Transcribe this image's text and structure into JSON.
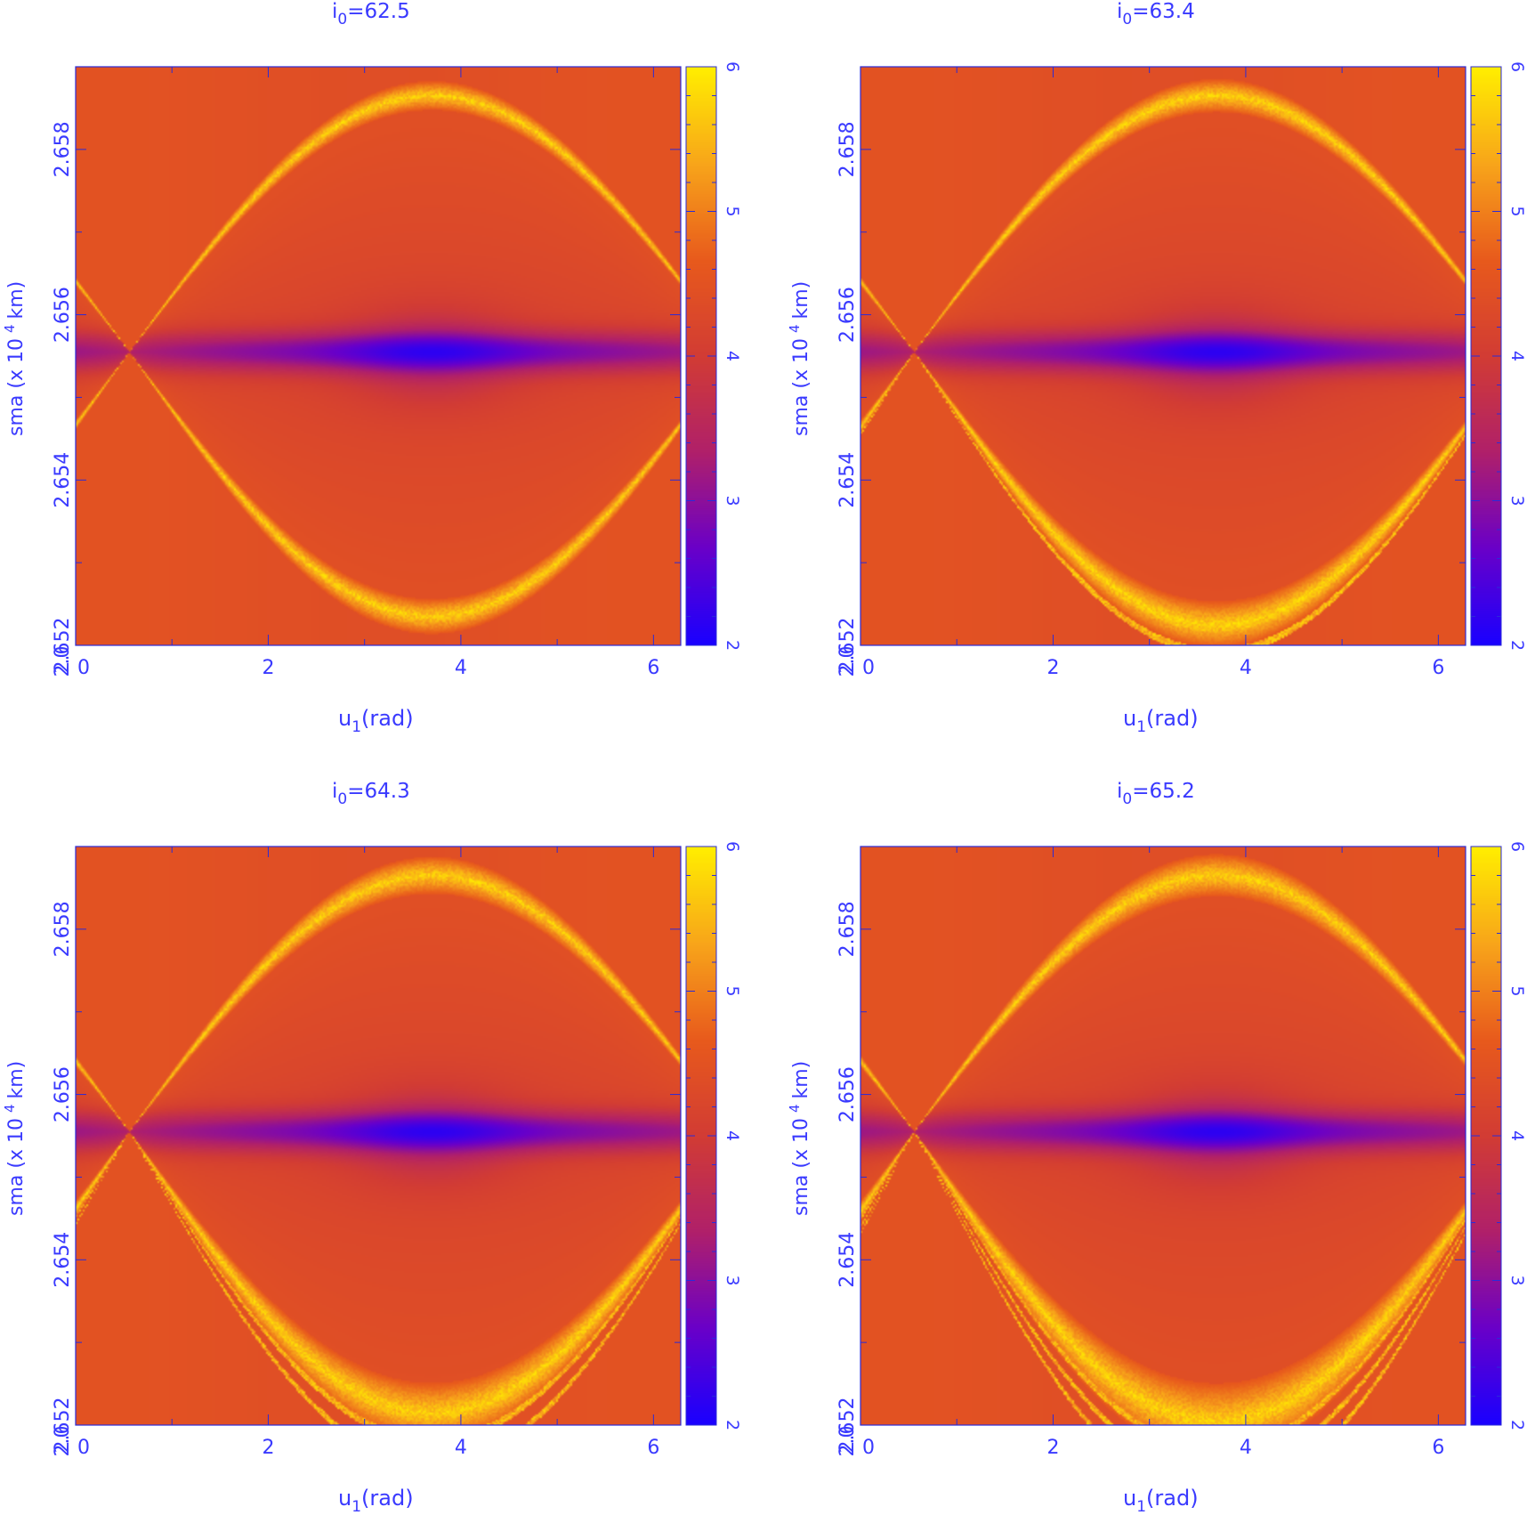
{
  "figure": {
    "colors": {
      "axis": "#2b2bd8",
      "text": "#3a3aff",
      "colormap": [
        "#1a00ff",
        "#6a00c8",
        "#b0206a",
        "#d23c34",
        "#e85a1c",
        "#f8a51a",
        "#ffee00"
      ]
    }
  },
  "chart_data": [
    {
      "type": "heatmap",
      "title": "i0=62.5",
      "title_main": "i",
      "title_sub": "0",
      "title_rest": "=62.5",
      "xlabel": "u1(rad)",
      "xlabel_main": "u",
      "xlabel_sub": "1",
      "xlabel_rest": "(rad)",
      "ylabel": "sma (x 10 4 km)",
      "ylabel_main": "sma (x 10",
      "ylabel_sup": "4",
      "ylabel_rest": "km)",
      "xlim": [
        0,
        6.283
      ],
      "ylim": [
        2.652,
        2.659
      ],
      "xticks": [
        "0",
        "2",
        "4",
        "6"
      ],
      "yticks": [
        "2.652",
        "2.654",
        "2.656",
        "2.658"
      ],
      "corner_label": "2.0",
      "colorbar": {
        "ticks": [
          "2",
          "3",
          "4",
          "5",
          "6"
        ],
        "range": [
          2,
          6
        ]
      },
      "structure": {
        "separatrix_center_u": 3.7,
        "separatrix_top_sma": 2.65865,
        "separatrix_bottom_sma": 2.65235,
        "saddle_u": 0.5,
        "saddle_sma": 2.65555,
        "chaotic_band": 0.2
      }
    },
    {
      "type": "heatmap",
      "title": "i0=63.4",
      "title_main": "i",
      "title_sub": "0",
      "title_rest": "=63.4",
      "xlabel": "u1(rad)",
      "xlabel_main": "u",
      "xlabel_sub": "1",
      "xlabel_rest": "(rad)",
      "ylabel": "sma (x 10 4 km)",
      "ylabel_main": "sma (x 10",
      "ylabel_sup": "4",
      "ylabel_rest": "km)",
      "xlim": [
        0,
        6.283
      ],
      "ylim": [
        2.652,
        2.659
      ],
      "xticks": [
        "0",
        "2",
        "4",
        "6"
      ],
      "yticks": [
        "2.652",
        "2.654",
        "2.656",
        "2.658"
      ],
      "corner_label": "2.0",
      "colorbar": {
        "ticks": [
          "2",
          "3",
          "4",
          "5",
          "6"
        ],
        "range": [
          2,
          6
        ]
      },
      "structure": {
        "separatrix_center_u": 3.7,
        "separatrix_top_sma": 2.65865,
        "separatrix_bottom_sma": 2.65225,
        "saddle_u": 0.5,
        "saddle_sma": 2.65555,
        "chaotic_band": 0.45
      }
    },
    {
      "type": "heatmap",
      "title": "i0=64.3",
      "title_main": "i",
      "title_sub": "0",
      "title_rest": "=64.3",
      "xlabel": "u1(rad)",
      "xlabel_main": "u",
      "xlabel_sub": "1",
      "xlabel_rest": "(rad)",
      "ylabel": "sma (x 10 4 km)",
      "ylabel_main": "sma (x 10",
      "ylabel_sup": "4",
      "ylabel_rest": "km)",
      "xlim": [
        0,
        6.283
      ],
      "ylim": [
        2.652,
        2.659
      ],
      "xticks": [
        "0",
        "2",
        "4",
        "6"
      ],
      "yticks": [
        "2.652",
        "2.654",
        "2.656",
        "2.658"
      ],
      "corner_label": "2.0",
      "colorbar": {
        "ticks": [
          "2",
          "3",
          "4",
          "5",
          "6"
        ],
        "range": [
          2,
          6
        ]
      },
      "structure": {
        "separatrix_center_u": 3.7,
        "separatrix_top_sma": 2.65865,
        "separatrix_bottom_sma": 2.65215,
        "saddle_u": 0.5,
        "saddle_sma": 2.65555,
        "chaotic_band": 0.7
      }
    },
    {
      "type": "heatmap",
      "title": "i0=65.2",
      "title_main": "i",
      "title_sub": "0",
      "title_rest": "=65.2",
      "xlabel": "u1(rad)",
      "xlabel_main": "u",
      "xlabel_sub": "1",
      "xlabel_rest": "(rad)",
      "ylabel": "sma (x 10 4 km)",
      "ylabel_main": "sma (x 10",
      "ylabel_sup": "4",
      "ylabel_rest": "km)",
      "xlim": [
        0,
        6.283
      ],
      "ylim": [
        2.652,
        2.659
      ],
      "xticks": [
        "0",
        "2",
        "4",
        "6"
      ],
      "yticks": [
        "2.652",
        "2.654",
        "2.656",
        "2.658"
      ],
      "corner_label": "2.0",
      "colorbar": {
        "ticks": [
          "2",
          "3",
          "4",
          "5",
          "6"
        ],
        "range": [
          2,
          6
        ]
      },
      "structure": {
        "separatrix_center_u": 3.7,
        "separatrix_top_sma": 2.65865,
        "separatrix_bottom_sma": 2.65205,
        "saddle_u": 0.5,
        "saddle_sma": 2.65555,
        "chaotic_band": 1.0
      }
    }
  ]
}
